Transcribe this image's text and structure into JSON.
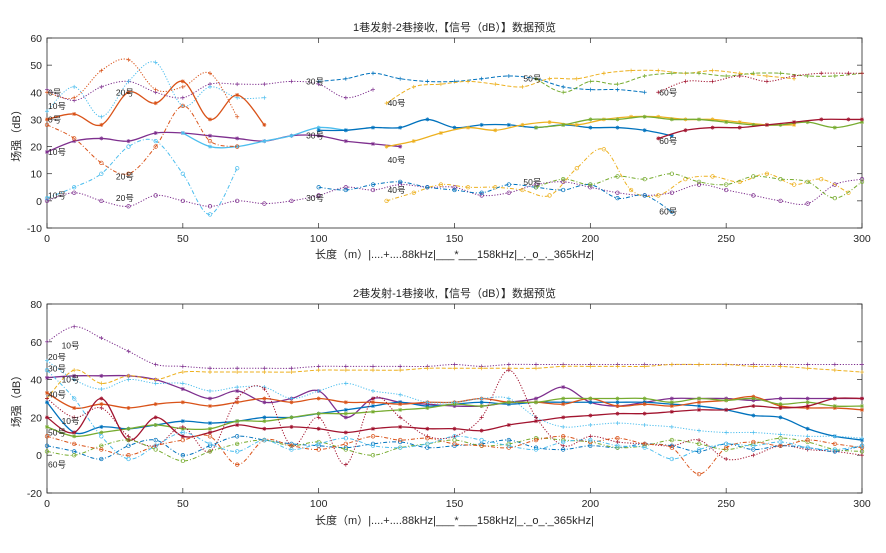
{
  "colors": {
    "c1": "#0072BD",
    "c2": "#D95319",
    "c3": "#EDB120",
    "c4": "#7E2F8E",
    "c5": "#77AC30",
    "c6": "#4DBEEE",
    "c7": "#A2142F"
  },
  "chart_data": [
    {
      "type": "line",
      "title": "1巷发射-2巷接收,【信号（dB）】数据预览",
      "xlabel": "长度（m）|....+....88kHz|___*___158kHz|_._o_._365kHz|",
      "ylabel": "场强（dB）",
      "xlim": [
        0,
        300
      ],
      "ylim": [
        -10,
        60
      ],
      "xticks": [
        0,
        50,
        100,
        150,
        200,
        250,
        300
      ],
      "yticks": [
        -10,
        0,
        10,
        20,
        30,
        40,
        50,
        60
      ],
      "series": [
        {
          "color": "#7E2F8E",
          "style": "dot",
          "marker": "+",
          "x0": 0,
          "dx": 10,
          "y": [
            41,
            37,
            42,
            44,
            40,
            38,
            43,
            43,
            43,
            44,
            43,
            38,
            41
          ]
        },
        {
          "color": "#4DBEEE",
          "style": "dot",
          "marker": "+",
          "x0": 0,
          "dx": 10,
          "y": [
            33,
            42,
            31,
            44,
            51,
            35,
            42,
            38,
            38
          ]
        },
        {
          "color": "#0072BD",
          "style": "dash",
          "marker": "+",
          "x0": 100,
          "dx": 10,
          "y": [
            44,
            45,
            47,
            45,
            44,
            44,
            45,
            46,
            45,
            42,
            41,
            41,
            40
          ]
        },
        {
          "color": "#EDB120",
          "style": "dash",
          "marker": "+",
          "x0": 125,
          "dx": 10,
          "y": [
            36,
            42,
            43,
            44,
            43,
            42,
            45,
            45,
            47,
            48,
            48,
            47,
            48,
            47,
            46,
            45
          ]
        },
        {
          "color": "#77AC30",
          "style": "dash",
          "marker": "+",
          "x0": 180,
          "dx": 10,
          "y": [
            45,
            40,
            44,
            43,
            46,
            47,
            47,
            46,
            47,
            47,
            46,
            46,
            47
          ]
        },
        {
          "color": "#A2142F",
          "style": "dot",
          "marker": "+",
          "x0": 225,
          "dx": 10,
          "y": [
            40,
            44,
            44,
            46,
            44,
            46,
            47,
            47,
            47
          ]
        },
        {
          "color": "#D95319",
          "style": "dot",
          "marker": "+",
          "x0": 0,
          "dx": 10,
          "y": [
            40,
            38,
            48,
            52,
            41,
            42,
            47,
            31
          ]
        },
        {
          "color": "#D95319",
          "style": "solid",
          "marker": "*",
          "x0": 0,
          "dx": 10,
          "y": [
            30,
            32,
            28,
            40,
            36,
            44,
            30,
            39,
            28
          ]
        },
        {
          "color": "#7E2F8E",
          "style": "solid",
          "marker": "*",
          "x0": 0,
          "dx": 10,
          "y": [
            18,
            22,
            23,
            22,
            25,
            25,
            24,
            23,
            22,
            24,
            24,
            22,
            21,
            20
          ]
        },
        {
          "color": "#4DBEEE",
          "style": "solid",
          "marker": "*",
          "x0": 50,
          "dx": 10,
          "y": [
            25,
            20,
            20,
            22,
            24,
            27,
            26
          ]
        },
        {
          "color": "#0072BD",
          "style": "solid",
          "marker": "*",
          "x0": 100,
          "dx": 10,
          "y": [
            26,
            26,
            27,
            27,
            30,
            27,
            28,
            28,
            27,
            28,
            27,
            27,
            26,
            24
          ]
        },
        {
          "color": "#EDB120",
          "style": "solid",
          "marker": "*",
          "x0": 125,
          "dx": 10,
          "y": [
            20,
            22,
            25,
            27,
            26,
            28,
            29,
            28,
            30,
            31,
            31,
            30,
            30,
            29,
            28,
            28
          ]
        },
        {
          "color": "#77AC30",
          "style": "solid",
          "marker": "*",
          "x0": 180,
          "dx": 10,
          "y": [
            27,
            28,
            30,
            30,
            31,
            30,
            30,
            29,
            28,
            28,
            29,
            27,
            29
          ]
        },
        {
          "color": "#A2142F",
          "style": "solid",
          "marker": "*",
          "x0": 225,
          "dx": 10,
          "y": [
            23,
            26,
            27,
            27,
            28,
            29,
            30,
            30,
            30
          ]
        },
        {
          "color": "#D95319",
          "style": "dashdot",
          "marker": "o",
          "x0": 0,
          "dx": 10,
          "y": [
            28,
            23,
            14,
            10,
            20,
            35,
            22,
            20
          ]
        },
        {
          "color": "#7E2F8E",
          "style": "dot",
          "marker": "o",
          "x0": 0,
          "dx": 10,
          "y": [
            0,
            3,
            0,
            -2,
            2,
            0,
            -2,
            0,
            -1,
            0,
            2,
            5,
            4,
            6,
            5,
            5,
            2,
            3,
            6,
            7,
            5,
            3,
            2,
            3,
            6,
            4,
            2,
            0,
            -1,
            6,
            8
          ]
        },
        {
          "color": "#EDB120",
          "style": "dashdot",
          "marker": "o",
          "x0": 125,
          "dx": 10,
          "y": [
            0,
            3,
            6,
            5,
            5,
            4,
            2,
            12,
            19,
            4,
            2,
            8,
            9,
            7,
            10,
            6,
            8,
            3
          ]
        },
        {
          "color": "#4DBEEE",
          "style": "dashdot",
          "marker": "o",
          "x0": 0,
          "dx": 10,
          "y": [
            1,
            5,
            10,
            20,
            22,
            10,
            -5,
            12
          ]
        },
        {
          "color": "#0072BD",
          "style": "dashdot",
          "marker": "o",
          "x0": 100,
          "dx": 10,
          "y": [
            5,
            4,
            6,
            7,
            5,
            4,
            3,
            6,
            5,
            4,
            6,
            1,
            2,
            -4
          ]
        },
        {
          "color": "#77AC30",
          "style": "dashdot",
          "marker": "o",
          "x0": 180,
          "dx": 10,
          "y": [
            5,
            8,
            6,
            9,
            8,
            10,
            7,
            6,
            9,
            8,
            7,
            1,
            7
          ]
        }
      ],
      "annotations": [
        {
          "text": "0号",
          "x": 0,
          "y": 40
        },
        {
          "text": "10号",
          "x": 0,
          "y": 35
        },
        {
          "text": "20号",
          "x": 25,
          "y": 40
        },
        {
          "text": "30号",
          "x": 95,
          "y": 44
        },
        {
          "text": "40号",
          "x": 125,
          "y": 36
        },
        {
          "text": "50号",
          "x": 175,
          "y": 45
        },
        {
          "text": "60号",
          "x": 225,
          "y": 40
        },
        {
          "text": "0号",
          "x": 0,
          "y": 30
        },
        {
          "text": "10号",
          "x": 0,
          "y": 18
        },
        {
          "text": "30号",
          "x": 95,
          "y": 24
        },
        {
          "text": "40号",
          "x": 125,
          "y": 15
        },
        {
          "text": "60号",
          "x": 225,
          "y": 22
        },
        {
          "text": "10号",
          "x": 0,
          "y": 2
        },
        {
          "text": "20号",
          "x": 25,
          "y": 9
        },
        {
          "text": "20号",
          "x": 25,
          "y": 1
        },
        {
          "text": "30号",
          "x": 95,
          "y": 1
        },
        {
          "text": "40号",
          "x": 125,
          "y": 4
        },
        {
          "text": "50号",
          "x": 175,
          "y": 7
        },
        {
          "text": "60号",
          "x": 225,
          "y": -4
        }
      ]
    },
    {
      "type": "line",
      "title": "2巷发射-1巷接收,【信号（dB）】数据预览",
      "xlabel": "长度（m）|....+....88kHz|___*___158kHz|_._o_._365kHz|",
      "ylabel": "场强（dB）",
      "xlim": [
        0,
        300
      ],
      "ylim": [
        -20,
        80
      ],
      "xticks": [
        0,
        50,
        100,
        150,
        200,
        250,
        300
      ],
      "yticks": [
        -20,
        0,
        20,
        40,
        60,
        80
      ],
      "series": [
        {
          "color": "#7E2F8E",
          "style": "dot",
          "marker": "+",
          "x0": 0,
          "dx": 10,
          "y": [
            60,
            68,
            62,
            55,
            48,
            47,
            46,
            46,
            46,
            46,
            47,
            47,
            47,
            47,
            47,
            48,
            47,
            48,
            48,
            48,
            48,
            48,
            48,
            48,
            48,
            48,
            48,
            48,
            48,
            48,
            48
          ]
        },
        {
          "color": "#7E2F8E",
          "style": "solid",
          "marker": "*",
          "x0": 0,
          "dx": 10,
          "y": [
            41,
            42,
            42,
            42,
            40,
            35,
            30,
            34,
            28,
            30,
            34,
            20,
            30,
            28,
            27,
            26,
            26,
            28,
            30,
            36,
            28,
            26,
            28,
            30,
            30,
            30,
            29,
            30,
            30,
            30,
            30
          ]
        },
        {
          "color": "#EDB120",
          "style": "dash",
          "marker": "+",
          "x0": 0,
          "dx": 10,
          "y": [
            30,
            45,
            38,
            42,
            40,
            44,
            44,
            44,
            44,
            44,
            45,
            45,
            45,
            45,
            46,
            46,
            46,
            46,
            46,
            47,
            47,
            47,
            47,
            48,
            48,
            48,
            47,
            47,
            46,
            45,
            44
          ]
        },
        {
          "color": "#0072BD",
          "style": "solid",
          "marker": "*",
          "x0": 0,
          "dx": 10,
          "y": [
            28,
            12,
            15,
            14,
            16,
            18,
            17,
            18,
            20,
            20,
            22,
            24,
            26,
            28,
            26,
            27,
            28,
            27,
            28,
            28,
            28,
            28,
            28,
            27,
            26,
            24,
            21,
            20,
            14,
            10,
            8
          ]
        },
        {
          "color": "#D95319",
          "style": "solid",
          "marker": "*",
          "x0": 0,
          "dx": 10,
          "y": [
            33,
            25,
            27,
            25,
            27,
            28,
            26,
            28,
            30,
            28,
            30,
            28,
            28,
            27,
            28,
            28,
            30,
            28,
            28,
            27,
            30,
            26,
            27,
            26,
            28,
            29,
            31,
            26,
            25,
            25,
            24
          ]
        },
        {
          "color": "#77AC30",
          "style": "solid",
          "marker": "*",
          "x0": 0,
          "dx": 10,
          "y": [
            15,
            10,
            12,
            14,
            16,
            14,
            14,
            18,
            18,
            20,
            22,
            22,
            23,
            24,
            25,
            27,
            26,
            28,
            28,
            30,
            30,
            30,
            30,
            28,
            30,
            29,
            30,
            27,
            28,
            26,
            26
          ]
        },
        {
          "color": "#A2142F",
          "style": "solid",
          "marker": "*",
          "x0": 0,
          "dx": 10,
          "y": [
            20,
            12,
            30,
            8,
            20,
            10,
            12,
            16,
            14,
            15,
            14,
            12,
            14,
            15,
            14,
            14,
            13,
            16,
            18,
            20,
            21,
            22,
            22,
            23,
            24,
            24,
            26,
            25,
            26,
            30,
            30
          ]
        },
        {
          "color": "#4DBEEE",
          "style": "dot",
          "marker": "+",
          "x0": 0,
          "dx": 10,
          "y": [
            50,
            40,
            35,
            40,
            38,
            38,
            34,
            36,
            36,
            30,
            34,
            38,
            34,
            32,
            28,
            28,
            30,
            30,
            20,
            15,
            16,
            17,
            16,
            15,
            13,
            12,
            12,
            11,
            10,
            10,
            9
          ]
        },
        {
          "color": "#A2142F",
          "style": "dot",
          "marker": "+",
          "x0": 0,
          "dx": 10,
          "y": [
            30,
            20,
            25,
            10,
            5,
            15,
            2,
            30,
            35,
            5,
            20,
            -5,
            30,
            20,
            10,
            10,
            20,
            45,
            20,
            5,
            10,
            7,
            6,
            5,
            8,
            -2,
            0,
            5,
            3,
            2,
            0
          ]
        },
        {
          "color": "#0072BD",
          "style": "dashdot",
          "marker": "o",
          "x0": 0,
          "dx": 10,
          "y": [
            5,
            2,
            -2,
            5,
            8,
            0,
            5,
            10,
            8,
            6,
            5,
            4,
            6,
            7,
            4,
            5,
            6,
            8,
            4,
            3,
            5,
            4,
            6,
            5,
            2,
            6,
            3,
            5,
            4,
            2,
            5
          ]
        },
        {
          "color": "#77AC30",
          "style": "dashdot",
          "marker": "o",
          "x0": 0,
          "dx": 10,
          "y": [
            2,
            0,
            5,
            8,
            3,
            -3,
            2,
            6,
            8,
            5,
            7,
            3,
            0,
            4,
            6,
            8,
            5,
            6,
            9,
            8,
            7,
            4,
            5,
            8,
            6,
            3,
            6,
            9,
            7,
            3,
            2
          ]
        },
        {
          "color": "#D95319",
          "style": "dashdot",
          "marker": "o",
          "x0": 0,
          "dx": 10,
          "y": [
            10,
            6,
            3,
            0,
            5,
            8,
            10,
            -5,
            8,
            5,
            3,
            6,
            10,
            8,
            9,
            6,
            5,
            4,
            8,
            10,
            7,
            9,
            6,
            4,
            -10,
            4,
            7,
            5,
            8,
            6,
            4
          ]
        },
        {
          "color": "#4DBEEE",
          "style": "dashdot",
          "marker": "o",
          "x0": 0,
          "dx": 10,
          "y": [
            45,
            30,
            10,
            -2,
            5,
            12,
            6,
            2,
            8,
            3,
            6,
            9,
            5,
            4,
            6,
            10,
            8,
            5,
            3,
            7,
            8,
            5,
            4,
            -2,
            3,
            6,
            5,
            7,
            4,
            3,
            5
          ]
        }
      ],
      "annotations": [
        {
          "text": "10号",
          "x": 5,
          "y": 58
        },
        {
          "text": "20号",
          "x": 0,
          "y": 52
        },
        {
          "text": "30号",
          "x": 0,
          "y": 46
        },
        {
          "text": "10号",
          "x": 5,
          "y": 40
        },
        {
          "text": "40号",
          "x": 0,
          "y": 32
        },
        {
          "text": "10号",
          "x": 5,
          "y": 18
        },
        {
          "text": "50号",
          "x": 0,
          "y": 12
        },
        {
          "text": "60号",
          "x": 0,
          "y": -5
        }
      ]
    }
  ]
}
